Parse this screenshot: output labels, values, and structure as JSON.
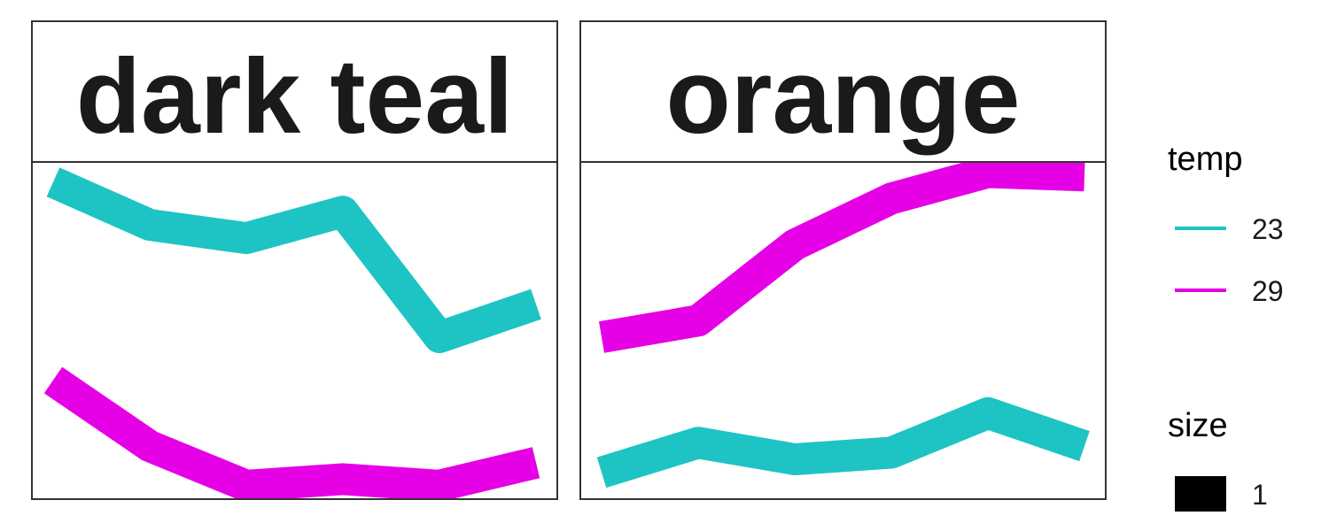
{
  "chart_data": {
    "type": "line",
    "grid": false,
    "axes_visible": false,
    "x": [
      1,
      2,
      3,
      4,
      5,
      6
    ],
    "ylim": [
      0,
      10
    ],
    "panels": [
      {
        "strip": "dark teal",
        "series": [
          {
            "temp": "23",
            "color": "#1ec4c4",
            "values": [
              9.5,
              8.2,
              7.8,
              8.6,
              4.8,
              5.8
            ]
          },
          {
            "temp": "29",
            "color": "#e600e6",
            "values": [
              3.5,
              1.5,
              0.3,
              0.5,
              0.3,
              1.0
            ]
          }
        ]
      },
      {
        "strip": "orange",
        "series": [
          {
            "temp": "23",
            "color": "#1ec4c4",
            "values": [
              0.7,
              1.6,
              1.1,
              1.3,
              2.5,
              1.5
            ]
          },
          {
            "temp": "29",
            "color": "#e600e6",
            "values": [
              4.8,
              5.3,
              7.6,
              9.0,
              9.8,
              9.7
            ]
          }
        ]
      }
    ],
    "legend": {
      "position": "right",
      "color_title": "temp",
      "color_entries": [
        {
          "label": "23",
          "color": "#1ec4c4"
        },
        {
          "label": "29",
          "color": "#e600e6"
        }
      ],
      "size_title": "size",
      "size_entries": [
        {
          "label": "1",
          "color": "#000000"
        }
      ]
    }
  }
}
